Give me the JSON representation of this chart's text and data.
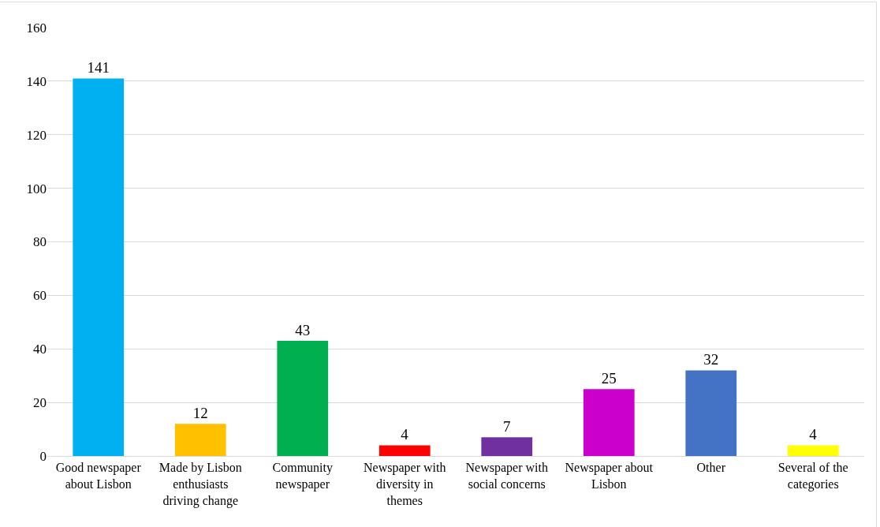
{
  "chart_data": {
    "type": "bar",
    "categories": [
      "Good newspaper about Lisbon",
      "Made by Lisbon enthusiasts driving change",
      "Community newspaper",
      "Newspaper with diversity in themes",
      "Newspaper with social concerns",
      "Newspaper about Lisbon",
      "Other",
      "Several of the categories"
    ],
    "values": [
      141,
      12,
      43,
      4,
      7,
      25,
      32,
      4
    ],
    "colors": [
      "#00b0f0",
      "#ffc000",
      "#00b050",
      "#ff0000",
      "#7030a0",
      "#cc00cc",
      "#4472c4",
      "#ffff00"
    ],
    "ylim": [
      0,
      160
    ],
    "yticks": [
      0,
      20,
      40,
      60,
      80,
      100,
      120,
      140,
      160
    ],
    "grid": "y",
    "data_labels": true,
    "legend": false
  }
}
